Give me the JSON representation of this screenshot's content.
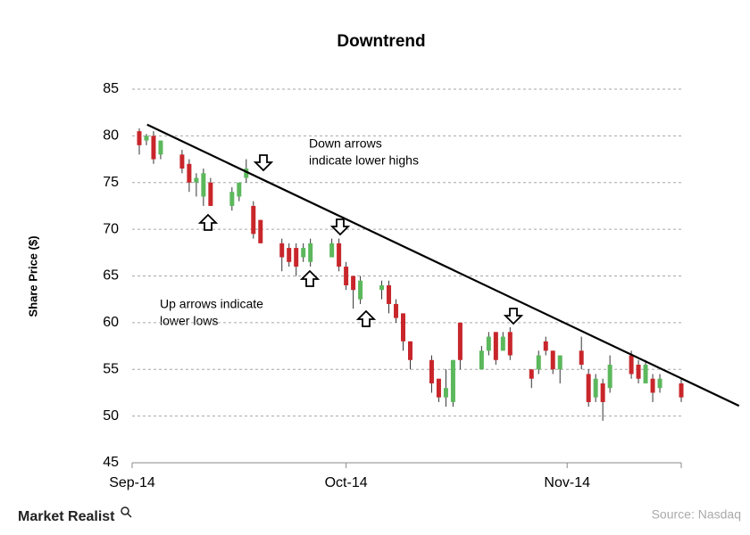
{
  "chart_data": {
    "type": "candlestick",
    "title": "Downtrend",
    "y_label": "Share Price ($)",
    "xlim": [
      0,
      77
    ],
    "xticks": [
      {
        "value": 0,
        "label": "Sep-14"
      },
      {
        "value": 30,
        "label": "Oct-14"
      },
      {
        "value": 61,
        "label": "Nov-14"
      }
    ],
    "ylim": [
      45,
      85
    ],
    "yticks": [
      45,
      50,
      55,
      60,
      65,
      70,
      75,
      80,
      85
    ],
    "grid": true,
    "up_color": "#5cb85c",
    "down_color": "#c8262b",
    "x": [
      1,
      2,
      3,
      4,
      7,
      8,
      9,
      10,
      11,
      14,
      15,
      16,
      17,
      18,
      21,
      22,
      23,
      24,
      25,
      28,
      29,
      30,
      31,
      32,
      35,
      36,
      37,
      38,
      39,
      42,
      43,
      44,
      45,
      46,
      49,
      50,
      51,
      52,
      53,
      56,
      57,
      58,
      59,
      60,
      63,
      64,
      65,
      66,
      67,
      70,
      71,
      72,
      73,
      74,
      77
    ],
    "open": [
      80.5,
      79.5,
      80,
      78,
      78,
      77,
      75,
      73.5,
      75,
      72.5,
      73.5,
      75.5,
      72.5,
      71,
      68.5,
      68,
      68,
      67,
      66.5,
      67,
      68.5,
      66,
      65,
      62.5,
      63.5,
      64,
      62,
      61,
      58,
      56,
      54,
      52,
      51.5,
      60,
      55,
      57,
      59,
      57,
      59,
      55,
      55,
      58,
      57,
      55,
      57,
      54.5,
      52,
      53.5,
      53,
      56.5,
      55.5,
      53.5,
      54,
      53,
      53.5
    ],
    "high": [
      80.8,
      80.2,
      80.5,
      79.5,
      78.5,
      77.5,
      76,
      76.5,
      75.5,
      74.5,
      75,
      77.5,
      73,
      71,
      69,
      68.5,
      68.5,
      68.5,
      69,
      69,
      69,
      66.5,
      65,
      65,
      64.5,
      64.5,
      62.5,
      61,
      58,
      56.5,
      54,
      55,
      56,
      60,
      57.5,
      59,
      59,
      59,
      59.5,
      55,
      57,
      58.5,
      57,
      56.5,
      58.5,
      55,
      54.5,
      54,
      56.5,
      57,
      56,
      56,
      54.5,
      54.5,
      54
    ],
    "low": [
      78,
      79,
      77,
      77.5,
      76,
      74,
      73.5,
      72.5,
      72.5,
      72,
      73,
      75,
      69,
      68.5,
      65.5,
      66,
      65,
      66.5,
      66,
      67,
      65.5,
      63.5,
      61.5,
      62,
      62.5,
      61,
      60,
      57,
      55,
      52.5,
      51.5,
      51,
      51,
      55,
      55,
      56.5,
      55.5,
      57,
      56,
      53,
      54.5,
      56.5,
      54.5,
      53.5,
      55,
      51,
      51.5,
      49.5,
      52.5,
      54,
      53.5,
      53.5,
      51.5,
      52.5,
      51.5
    ],
    "close": [
      79,
      80,
      77.5,
      79.5,
      76.5,
      75,
      75.5,
      76,
      72.5,
      74,
      75,
      76.5,
      69.5,
      68.5,
      67,
      66.5,
      66,
      68,
      68.5,
      68.5,
      66,
      64,
      63.5,
      64.5,
      64,
      62,
      60.5,
      58,
      56,
      53.5,
      52,
      53,
      56,
      56,
      57,
      58.5,
      56,
      58.5,
      56.5,
      54,
      56.5,
      57,
      55,
      56.5,
      55.5,
      51.5,
      54,
      51.5,
      55.5,
      54.5,
      54,
      55.5,
      52.5,
      54,
      52
    ],
    "trendline": {
      "x": [
        2.1,
        85.1
      ],
      "y": [
        81.2,
        51.1
      ]
    },
    "annotations": [
      [
        "Down arrows",
        "indicate lower highs"
      ],
      [
        "Up arrows indicate",
        "lower lows"
      ]
    ],
    "brand": "Market Realist",
    "source": "Source: Nasdaq"
  }
}
